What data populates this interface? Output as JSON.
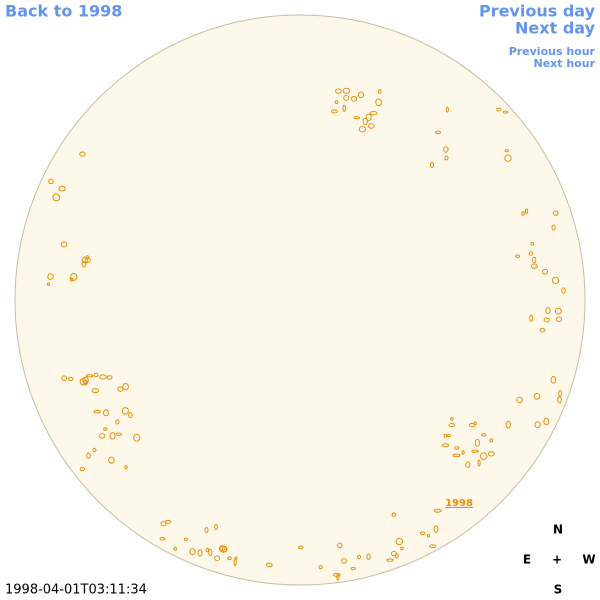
{
  "nav": {
    "back": "Back to 1998",
    "previous_day": "Previous day",
    "next_day": "Next day",
    "previous_hour": "Previous hour",
    "next_hour": "Next hour"
  },
  "disk_label": "1998",
  "timestamp": "1998-04-01T03:11:34",
  "compass": {
    "north": "N",
    "east": "E",
    "center": "+",
    "west": "W",
    "south": "S"
  }
}
